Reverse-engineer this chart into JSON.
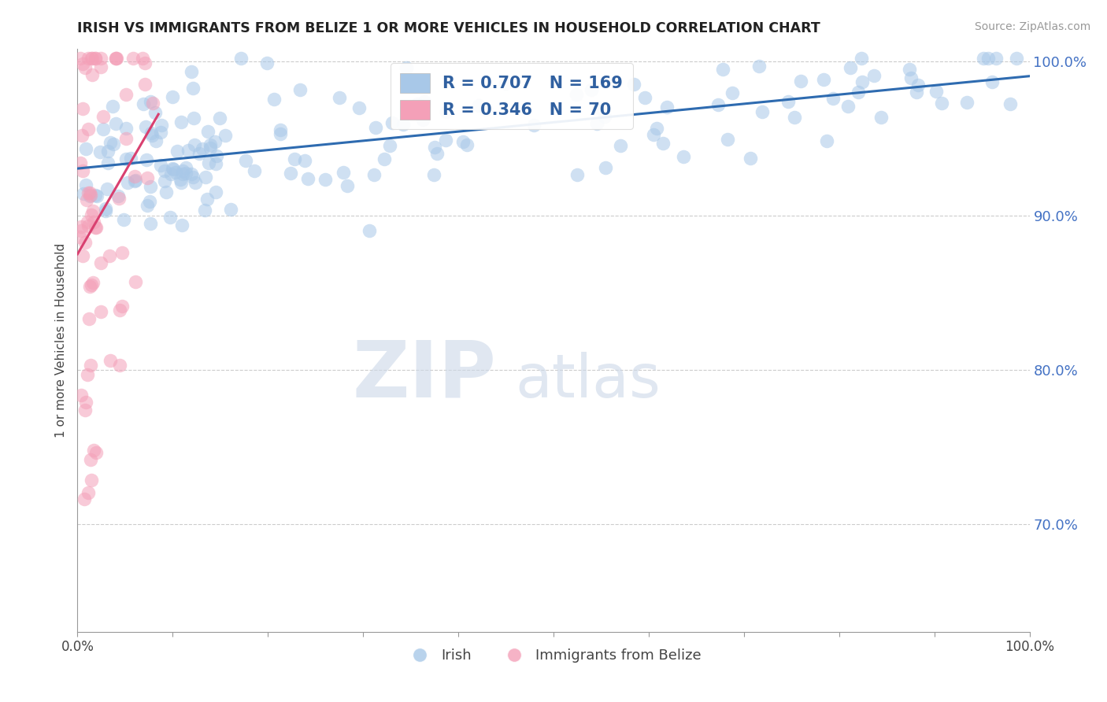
{
  "title": "IRISH VS IMMIGRANTS FROM BELIZE 1 OR MORE VEHICLES IN HOUSEHOLD CORRELATION CHART",
  "source": "Source: ZipAtlas.com",
  "ylabel": "1 or more Vehicles in Household",
  "xlim": [
    0.0,
    1.0
  ],
  "ylim": [
    0.63,
    1.008
  ],
  "ytick_positions": [
    0.7,
    0.8,
    0.9,
    1.0
  ],
  "ytick_labels": [
    "70.0%",
    "80.0%",
    "90.0%",
    "100.0%"
  ],
  "blue_color": "#a8c8e8",
  "pink_color": "#f4a0b8",
  "blue_line_color": "#2e6bb0",
  "pink_line_color": "#d94070",
  "legend_blue_label": "R = 0.707   N = 169",
  "legend_pink_label": "R = 0.346   N = 70",
  "watermark_zip": "ZIP",
  "watermark_atlas": "atlas",
  "legend_bottom_irish": "Irish",
  "legend_bottom_belize": "Immigrants from Belize"
}
